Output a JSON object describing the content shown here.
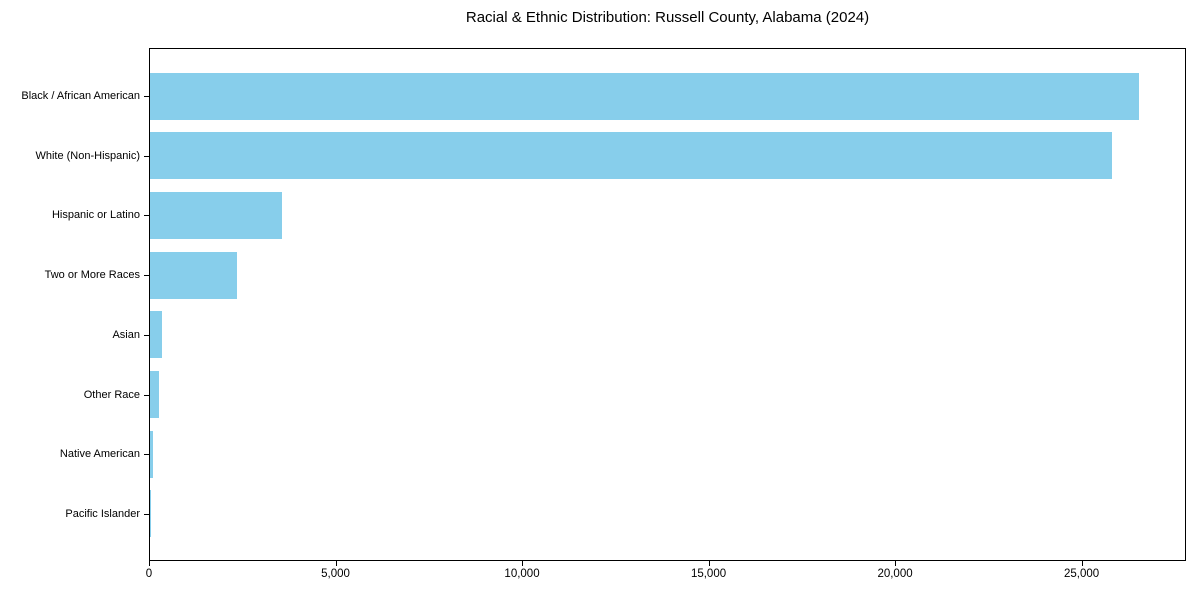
{
  "chart_data": {
    "type": "bar",
    "orientation": "horizontal",
    "title": "Racial & Ethnic Distribution: Russell County, Alabama (2024)",
    "categories": [
      "Black / African American",
      "White (Non-Hispanic)",
      "Hispanic or Latino",
      "Two or More Races",
      "Asian",
      "Other Race",
      "Native American",
      "Pacific Islander"
    ],
    "values": [
      26500,
      25800,
      3550,
      2340,
      330,
      250,
      80,
      25
    ],
    "xlabel": "",
    "ylabel": "",
    "xlim": [
      0,
      27800
    ],
    "xticks": [
      0,
      5000,
      10000,
      15000,
      20000,
      25000
    ],
    "xtick_labels": [
      "0",
      "5,000",
      "10,000",
      "15,000",
      "20,000",
      "25,000"
    ],
    "bar_color": "#87CEEB",
    "background_color": "#ffffff",
    "axis_color": "#000000",
    "grid": false,
    "legend": null
  }
}
